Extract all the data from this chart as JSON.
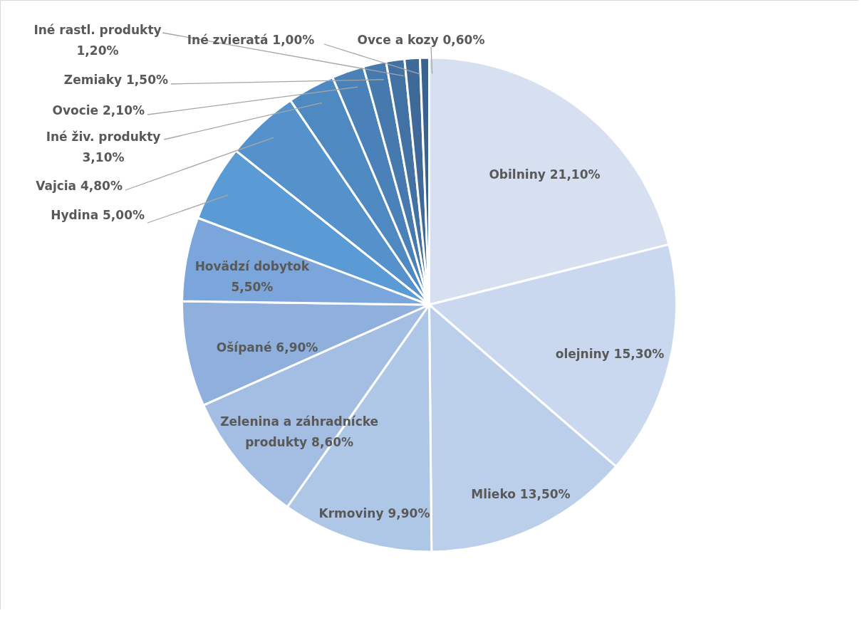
{
  "chart_data": {
    "type": "pie",
    "categories": [
      "Obilniny",
      "olejniny",
      "Mlieko",
      "Krmoviny",
      "Zelenina a záhradnícke produkty",
      "Ošípané",
      "Hovädzí dobytok",
      "Hydina",
      "Vajcia",
      "Iné živ. produkty",
      "Ovocie",
      "Zemiaky",
      "Iné rastl. produkty",
      "Iné zvieratá",
      "Ovce a kozy"
    ],
    "values": [
      21.1,
      15.3,
      13.5,
      9.9,
      8.6,
      6.9,
      5.5,
      5.0,
      4.8,
      3.1,
      2.1,
      1.5,
      1.2,
      1.0,
      0.6
    ],
    "value_labels": [
      "21,10%",
      "15,30%",
      "13,50%",
      "9,90%",
      "8,60%",
      "6,90%",
      "5,50%",
      "5,00%",
      "4,80%",
      "3,10%",
      "2,10%",
      "1,50%",
      "1,20%",
      "1,00%",
      "0,60%"
    ],
    "colors": [
      "#d6e0f0",
      "#c9d8ee",
      "#bccfea",
      "#afc7e7",
      "#a3bde3",
      "#8fb0dc",
      "#7aa6dc",
      "#5b9bd5",
      "#5592cc",
      "#4f89c2",
      "#4a81b8",
      "#4679ae",
      "#4271a3",
      "#3e6999",
      "#3a628f"
    ]
  }
}
